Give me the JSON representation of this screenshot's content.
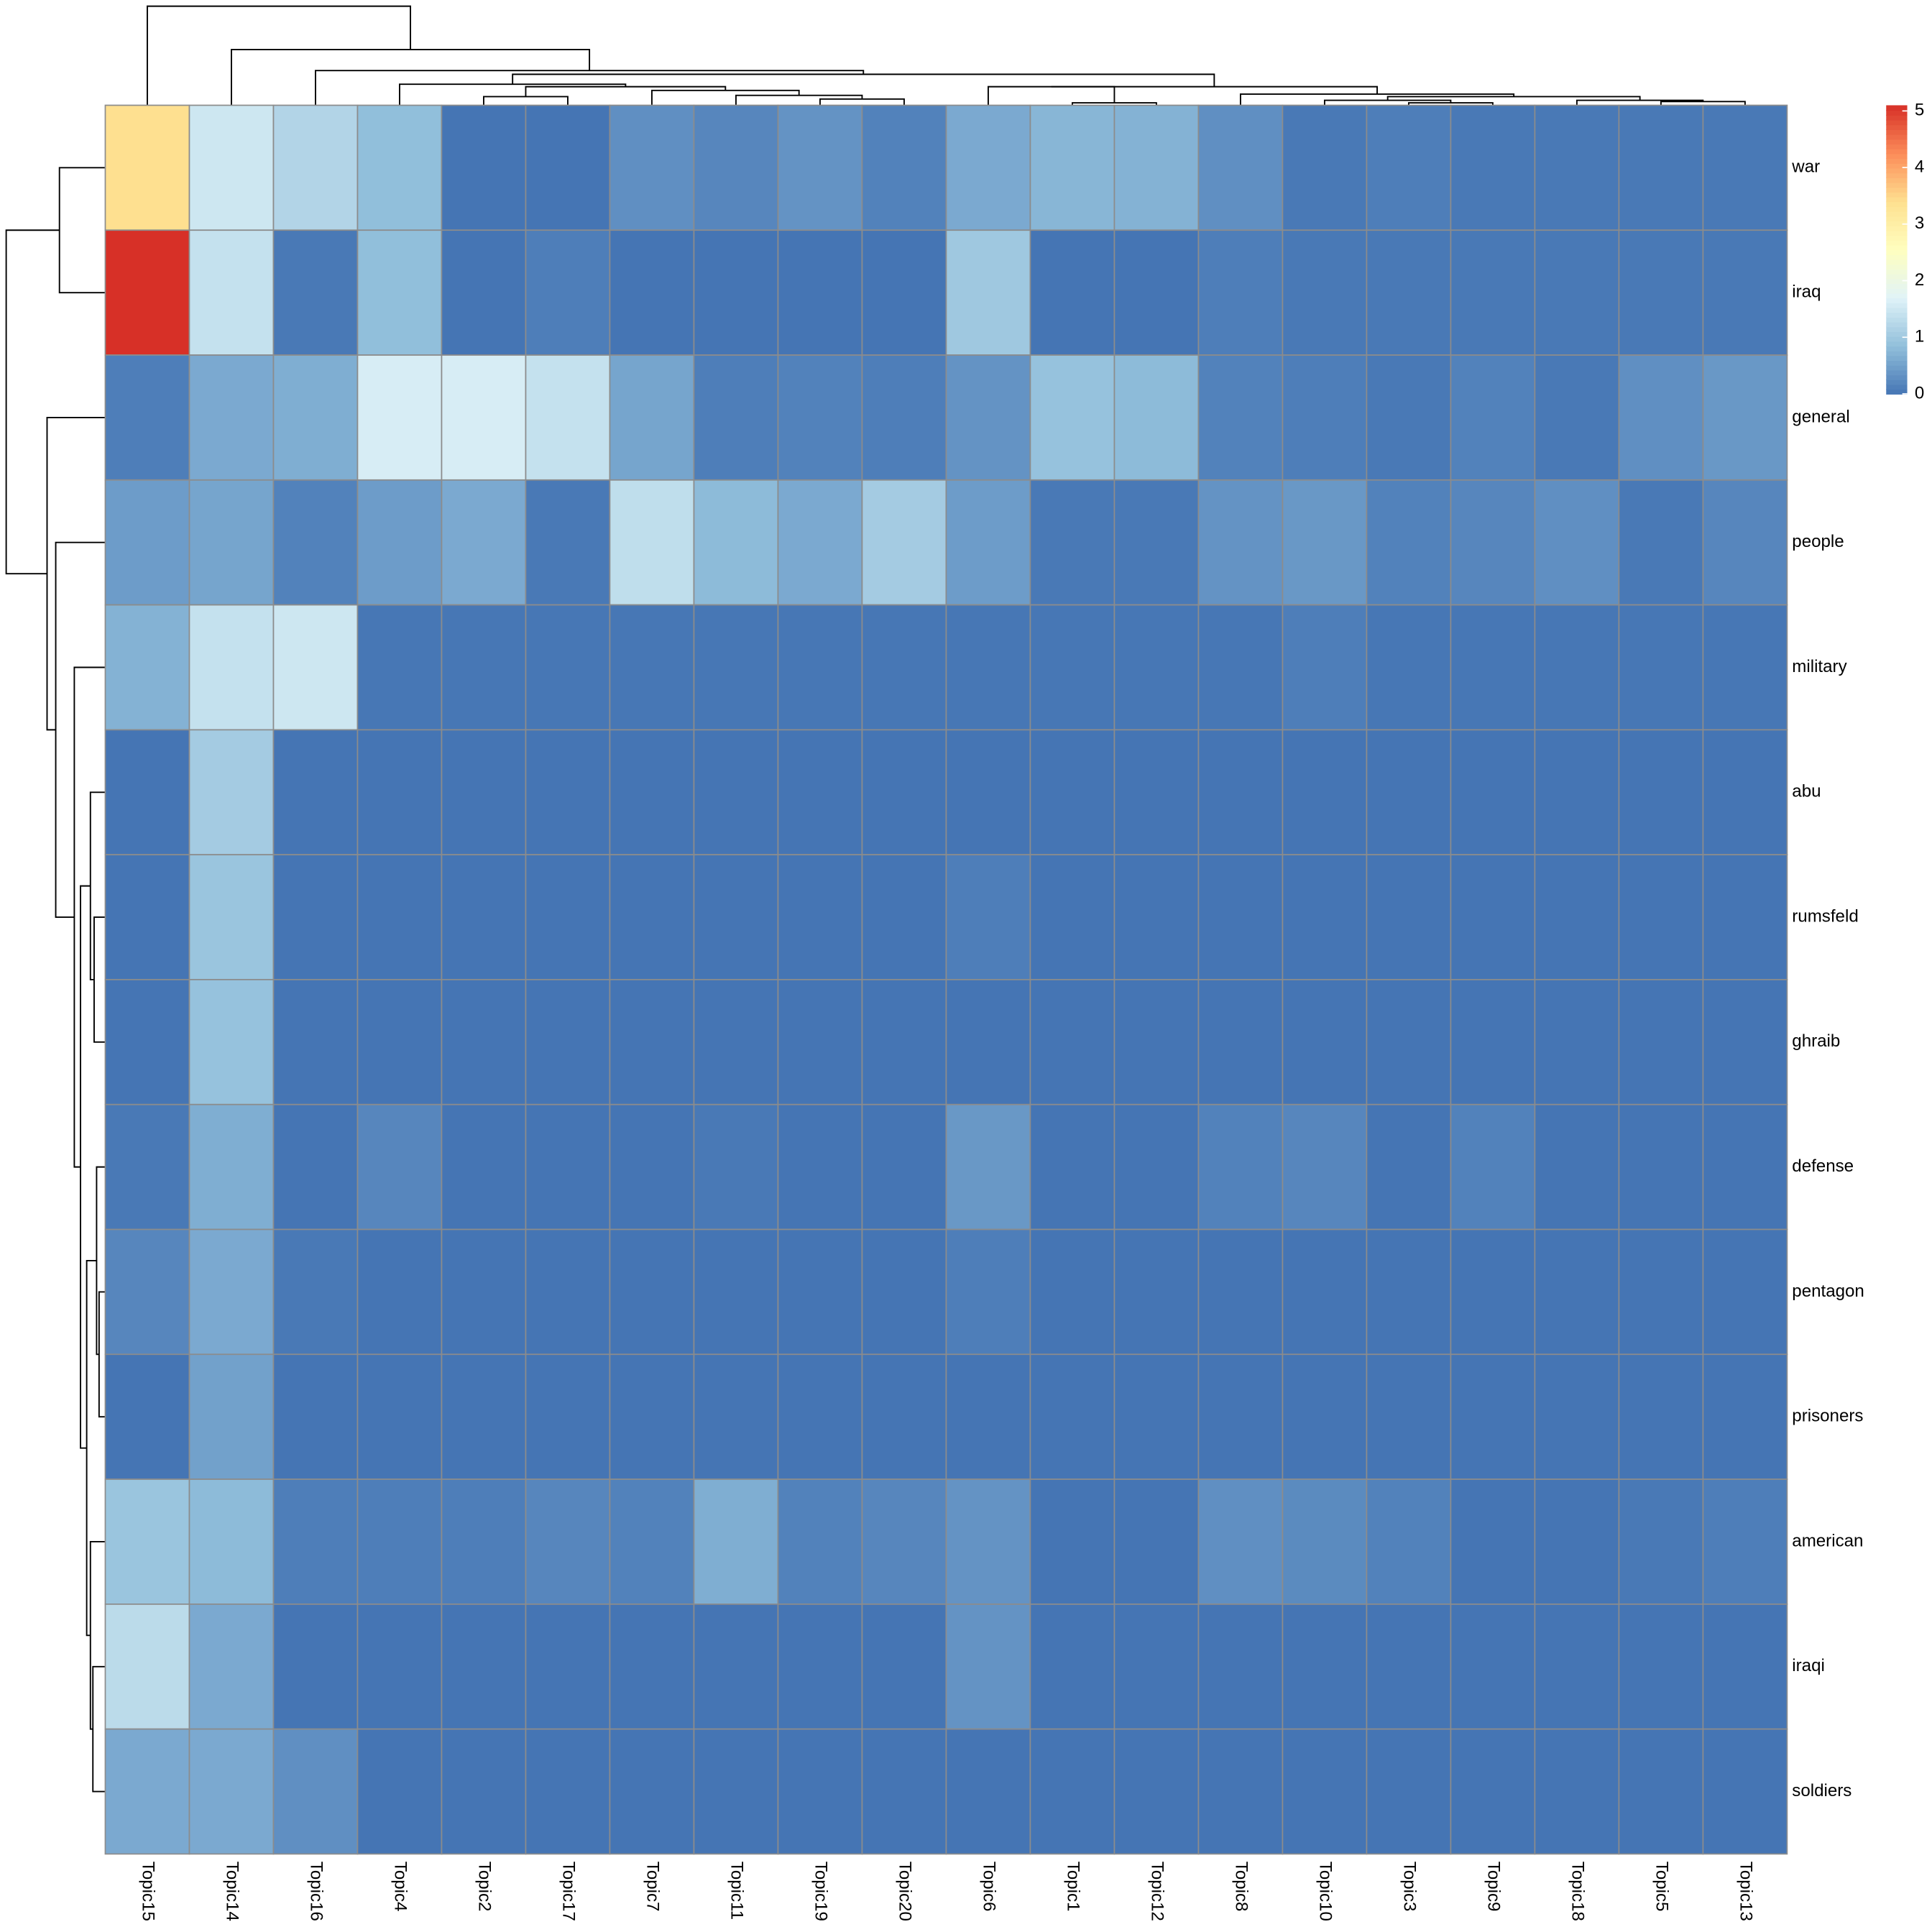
{
  "chart_data": {
    "type": "heatmap",
    "rows": [
      "war",
      "iraq",
      "general",
      "people",
      "military",
      "abu",
      "rumsfeld",
      "ghraib",
      "defense",
      "pentagon",
      "prisoners",
      "american",
      "iraqi",
      "soldiers"
    ],
    "columns": [
      "Topic15",
      "Topic14",
      "Topic16",
      "Topic4",
      "Topic2",
      "Topic17",
      "Topic7",
      "Topic11",
      "Topic19",
      "Topic20",
      "Topic6",
      "Topic1",
      "Topic12",
      "Topic8",
      "Topic10",
      "Topic3",
      "Topic9",
      "Topic18",
      "Topic5",
      "Topic13"
    ],
    "values": [
      [
        3.4,
        1.5,
        1.2,
        0.85,
        0,
        0,
        0.3,
        0.2,
        0.35,
        0.15,
        0.6,
        0.75,
        0.7,
        0.3,
        0.05,
        0.1,
        0.05,
        0.05,
        0.05,
        0.05
      ],
      [
        5.1,
        1.4,
        0.05,
        0.85,
        0,
        0.1,
        0,
        0,
        0,
        0,
        1.0,
        0,
        0,
        0.1,
        0.05,
        0.05,
        0.05,
        0.05,
        0.05,
        0.05
      ],
      [
        0.1,
        0.6,
        0.65,
        1.6,
        1.6,
        1.4,
        0.55,
        0.1,
        0.15,
        0.1,
        0.35,
        0.9,
        0.8,
        0.15,
        0.1,
        0.05,
        0.15,
        0.05,
        0.3,
        0.4
      ],
      [
        0.45,
        0.55,
        0.15,
        0.45,
        0.6,
        0.05,
        1.35,
        0.8,
        0.6,
        1.05,
        0.45,
        0.05,
        0.05,
        0.35,
        0.4,
        0.15,
        0.2,
        0.3,
        0.05,
        0.2
      ],
      [
        0.7,
        1.4,
        1.5,
        0.02,
        0.02,
        0.02,
        0.02,
        0.02,
        0.02,
        0.02,
        0.02,
        0.02,
        0.02,
        0.02,
        0.1,
        0.02,
        0.02,
        0.02,
        0.02,
        0.02
      ],
      [
        0,
        1.05,
        0,
        0,
        0,
        0,
        0,
        0,
        0,
        0,
        0,
        0,
        0,
        0,
        0,
        0,
        0,
        0,
        0,
        0
      ],
      [
        0,
        0.95,
        0,
        0,
        0,
        0,
        0,
        0,
        0,
        0,
        0.1,
        0,
        0,
        0,
        0,
        0,
        0,
        0,
        0,
        0
      ],
      [
        0,
        0.9,
        0,
        0,
        0,
        0,
        0,
        0,
        0,
        0,
        0,
        0,
        0,
        0,
        0,
        0,
        0,
        0,
        0,
        0
      ],
      [
        0.05,
        0.65,
        0,
        0.2,
        0,
        0,
        0,
        0.05,
        0,
        0,
        0.4,
        0,
        0,
        0.15,
        0.2,
        0,
        0.15,
        0,
        0,
        0
      ],
      [
        0.2,
        0.6,
        0.05,
        0,
        0,
        0,
        0,
        0,
        0,
        0,
        0.1,
        0,
        0,
        0,
        0,
        0,
        0,
        0,
        0,
        0
      ],
      [
        0,
        0.5,
        0,
        0,
        0,
        0,
        0,
        0,
        0,
        0,
        0,
        0,
        0,
        0,
        0,
        0,
        0,
        0,
        0,
        0
      ],
      [
        0.95,
        0.8,
        0.1,
        0.1,
        0.1,
        0.2,
        0.15,
        0.65,
        0.15,
        0.2,
        0.35,
        0,
        0,
        0.3,
        0.25,
        0.15,
        0,
        0,
        0.05,
        0.1
      ],
      [
        1.3,
        0.6,
        0,
        0,
        0,
        0,
        0,
        0,
        0,
        0,
        0.35,
        0,
        0,
        0,
        0,
        0,
        0,
        0,
        0,
        0
      ],
      [
        0.6,
        0.6,
        0.3,
        0,
        0,
        0,
        0,
        0,
        0,
        0,
        0,
        0,
        0,
        0,
        0,
        0,
        0,
        0,
        0,
        0
      ]
    ],
    "colors": [
      "#4575b4",
      "#91bfdb",
      "#e0f3f8",
      "#ffffbf",
      "#fee090",
      "#fc8d59",
      "#d73027"
    ],
    "zlim": [
      0,
      5.1
    ],
    "zticks": [
      0,
      1,
      2,
      3,
      4,
      5
    ]
  }
}
